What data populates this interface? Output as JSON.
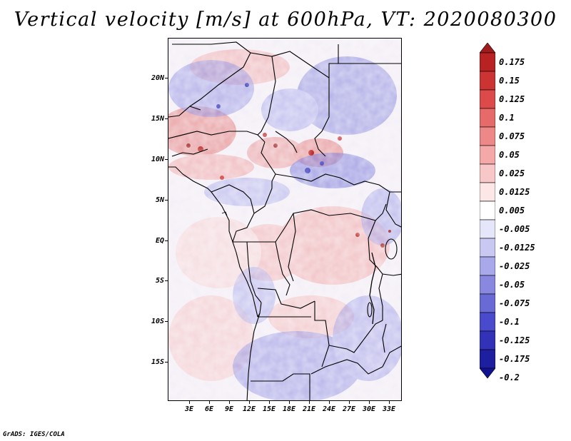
{
  "title": "Vertical velocity [m/s] at 600hPa, VT: 2020080300",
  "credit": "GrADS: IGES/COLA",
  "map": {
    "variable": "Vertical velocity",
    "units": "m/s",
    "level": "600hPa",
    "valid_time": "2020080300",
    "lat_labels": [
      "20N",
      "15N",
      "10N",
      "5N",
      "EQ",
      "5S",
      "10S",
      "15S"
    ],
    "lon_labels": [
      "3E",
      "6E",
      "9E",
      "12E",
      "15E",
      "18E",
      "21E",
      "24E",
      "27E",
      "30E",
      "33E"
    ]
  },
  "legend": {
    "labels": [
      "0.175",
      "0.15",
      "0.125",
      "0.1",
      "0.075",
      "0.05",
      "0.025",
      "0.0125",
      "0.005",
      "-0.005",
      "-0.0125",
      "-0.025",
      "-0.05",
      "-0.075",
      "-0.1",
      "-0.125",
      "-0.175",
      "-0.2"
    ],
    "colors": [
      "#a01c1c",
      "#b82222",
      "#cc3333",
      "#dd4a4a",
      "#e66a6a",
      "#ee8888",
      "#f4a8a8",
      "#f8c8c8",
      "#fce6e6",
      "#ffffff",
      "#e6e6fa",
      "#c8c8f2",
      "#a8a8ea",
      "#8888e0",
      "#6a6ad6",
      "#4a4acc",
      "#3232b8",
      "#1e1ea0",
      "#121290"
    ]
  },
  "colors": {
    "positive": "#cc3333",
    "negative": "#4a4acc",
    "boundary": "#000000"
  }
}
